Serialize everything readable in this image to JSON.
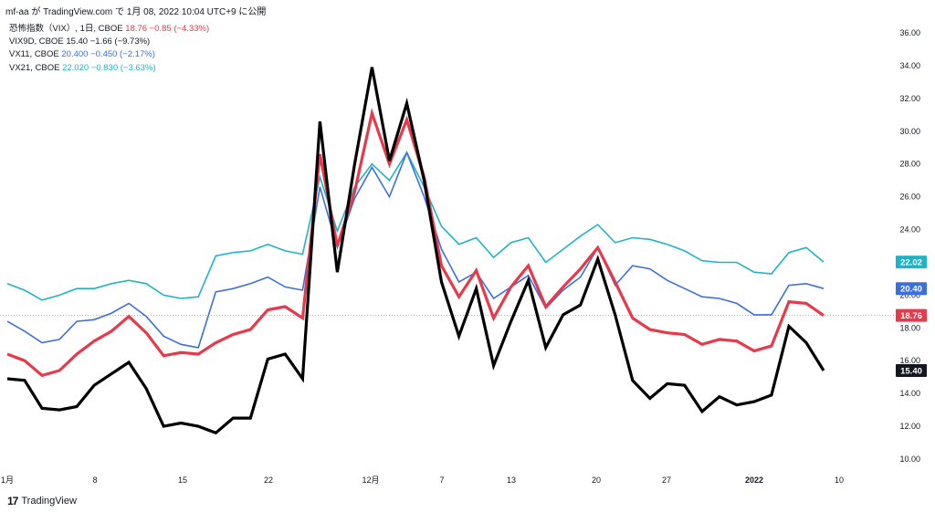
{
  "header": {
    "attribution": "mf-aa が TradingView.com で 1月 08, 2022 10:04 UTC+9 に公開"
  },
  "legend": [
    {
      "symbol": "恐怖指数（VIX）, 1日, CBOE",
      "value": "18.76",
      "change": "−0.85 (−4.33%)",
      "color": "#e8394a"
    },
    {
      "symbol": "VIX9D, CBOE",
      "value": "15.40",
      "change": "−1.66 (−9.73%)",
      "color": "#131722"
    },
    {
      "symbol": "VX11, CBOE",
      "value": "20.400",
      "change": "−0.450 (−2.17%)",
      "color": "#3b6fe0"
    },
    {
      "symbol": "VX21, CBOE",
      "value": "22.020",
      "change": "−0.830 (−3.63%)",
      "color": "#1eb4c8"
    }
  ],
  "footer": {
    "logo_mark": "17",
    "brand": "TradingView"
  },
  "chart_data": {
    "type": "line",
    "ylim": [
      9,
      37
    ],
    "grid": false,
    "y_ticks": [
      "10.00",
      "12.00",
      "14.00",
      "16.00",
      "18.00",
      "20.00",
      "22.00",
      "24.00",
      "26.00",
      "28.00",
      "30.00",
      "32.00",
      "34.00",
      "36.00"
    ],
    "x_tick_labels": [
      "1月",
      "8",
      "15",
      "22",
      "12月",
      "7",
      "13",
      "20",
      "27",
      "2022",
      "10"
    ],
    "price_labels": [
      {
        "text": "22.02",
        "value": 22.02,
        "color": "#1eb4c8",
        "text_color": "#ffffff"
      },
      {
        "text": "20.40",
        "value": 20.4,
        "color": "#3b6fe0",
        "text_color": "#ffffff"
      },
      {
        "text": "18.76",
        "value": 18.76,
        "color": "#e8394a",
        "text_color": "#ffffff"
      },
      {
        "text": "15.40",
        "value": 15.4,
        "color": "#131722",
        "text_color": "#ffffff"
      }
    ],
    "reference_line": {
      "value": 18.76,
      "color": "#e8394a"
    },
    "series": [
      {
        "name": "VX21",
        "color": "#1eb4c8",
        "width": 1.6,
        "values": [
          20.7,
          20.3,
          19.7,
          20.0,
          20.4,
          20.4,
          20.7,
          20.9,
          20.7,
          20.0,
          19.8,
          19.9,
          22.4,
          22.6,
          22.7,
          23.1,
          22.7,
          22.5,
          27.2,
          23.9,
          26.6,
          28.0,
          27.0,
          28.7,
          26.6,
          24.2,
          23.1,
          23.5,
          22.3,
          23.2,
          23.5,
          22.0,
          22.8,
          23.6,
          24.3,
          23.2,
          23.5,
          23.4,
          23.1,
          22.7,
          22.1,
          22.0,
          22.0,
          21.4,
          21.3,
          22.6,
          22.9,
          22.02
        ]
      },
      {
        "name": "VX11",
        "color": "#3b6fe0",
        "width": 1.6,
        "values": [
          18.4,
          17.8,
          17.1,
          17.3,
          18.4,
          18.5,
          18.9,
          19.5,
          18.7,
          17.5,
          17.0,
          16.8,
          20.2,
          20.4,
          20.7,
          21.1,
          20.5,
          20.3,
          26.6,
          22.9,
          25.9,
          27.8,
          26.0,
          28.7,
          26.0,
          22.8,
          20.8,
          21.4,
          19.8,
          20.5,
          21.2,
          19.2,
          20.3,
          21.1,
          22.9,
          20.6,
          21.8,
          21.6,
          20.9,
          20.4,
          19.9,
          19.8,
          19.5,
          18.8,
          18.8,
          20.6,
          20.7,
          20.4
        ]
      },
      {
        "name": "VIX",
        "color": "#e8394a",
        "width": 3.2,
        "values": [
          16.4,
          16.0,
          15.1,
          15.4,
          16.4,
          17.2,
          17.8,
          18.7,
          17.7,
          16.3,
          16.5,
          16.4,
          17.1,
          17.6,
          17.9,
          19.1,
          19.3,
          18.6,
          28.6,
          23.0,
          26.3,
          31.1,
          28.0,
          30.7,
          27.2,
          21.8,
          19.9,
          21.5,
          18.6,
          20.5,
          21.8,
          19.3,
          20.5,
          21.6,
          22.9,
          20.8,
          18.6,
          17.9,
          17.7,
          17.6,
          17.0,
          17.3,
          17.2,
          16.6,
          16.9,
          19.6,
          19.5,
          18.76
        ]
      },
      {
        "name": "VIX9D",
        "color": "#000000",
        "width": 3.2,
        "values": [
          14.9,
          14.8,
          13.1,
          13.0,
          13.2,
          14.5,
          15.2,
          15.9,
          14.3,
          12.0,
          12.2,
          12.0,
          11.6,
          12.5,
          12.5,
          16.1,
          16.4,
          14.9,
          30.6,
          21.4,
          28.0,
          33.9,
          28.2,
          31.7,
          27.0,
          20.8,
          17.5,
          20.4,
          15.7,
          18.4,
          20.9,
          16.8,
          18.8,
          19.4,
          22.2,
          18.8,
          14.8,
          13.7,
          14.6,
          14.5,
          12.9,
          13.8,
          13.3,
          13.5,
          13.9,
          18.1,
          17.1,
          15.4
        ]
      }
    ]
  }
}
